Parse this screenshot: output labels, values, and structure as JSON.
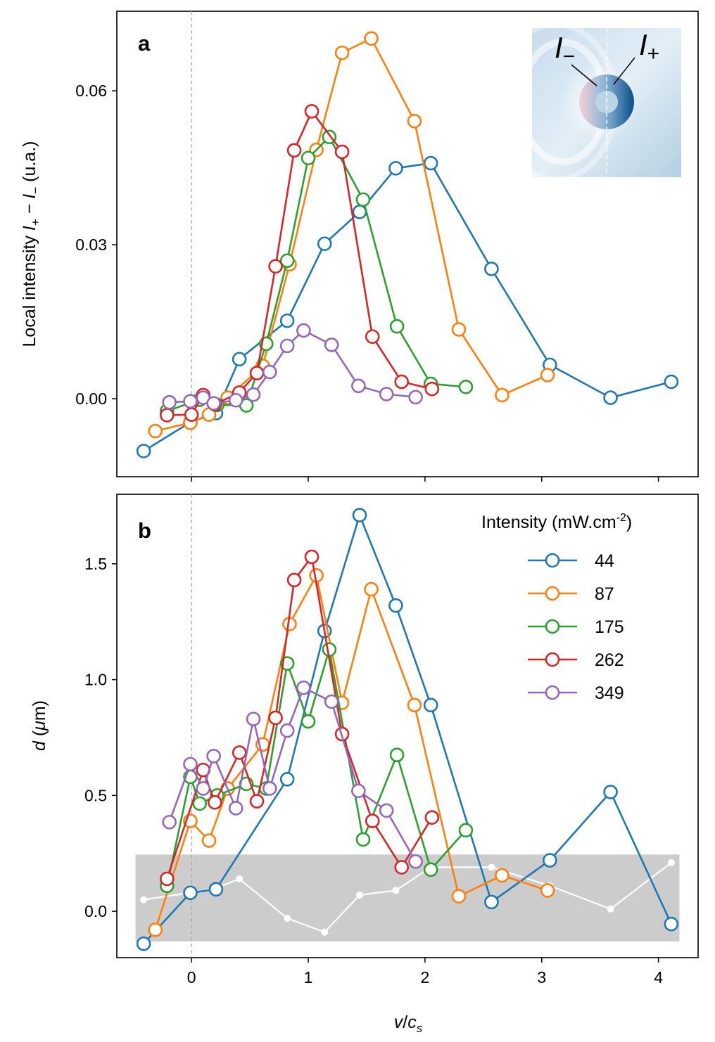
{
  "figure": {
    "shared_xlabel": {
      "main": "v",
      "slash": "/",
      "c": "c",
      "sub": "s"
    },
    "x_ticks": [
      0,
      1,
      2,
      3,
      4
    ],
    "x_tick_labels": [
      "0",
      "1",
      "2",
      "3",
      "4"
    ],
    "colors": {
      "44": "#1f77b4",
      "87": "#ff7f0e",
      "175": "#2ca02c",
      "262": "#d62728",
      "349": "#9467bd"
    }
  },
  "legend": {
    "title": "Intensity (mW.cm",
    "title_sup": "-2",
    "title_close": ")",
    "entries": [
      "44",
      "87",
      "175",
      "262",
      "349"
    ]
  },
  "inset": {
    "minus_label": "I",
    "minus_sub": "−",
    "plus_label": "I",
    "plus_sub": "+"
  },
  "chart_data": [
    {
      "panel": "a",
      "type": "line",
      "ylabel": "Local intensity I₊ − I₋ (u.a.)",
      "ylabel_parts": {
        "pre": "Local intensity ",
        "i1": "I",
        "s1": "+",
        "mid": " − ",
        "i2": "I",
        "s2": "−",
        "post": " (u.a.)"
      },
      "xlim": [
        -0.64,
        4.34
      ],
      "ylim": [
        -0.0152,
        0.0755
      ],
      "yticks": [
        0.0,
        0.03,
        0.06
      ],
      "ytick_labels": [
        "0.00",
        "0.03",
        "0.06"
      ],
      "reference_line_x": 0,
      "series": [
        {
          "name": "44",
          "x": [
            -0.41,
            -0.01,
            0.21,
            0.41,
            0.82,
            1.14,
            1.44,
            1.75,
            2.05,
            2.57,
            3.07,
            3.59,
            4.11
          ],
          "y": [
            -0.0102,
            -0.0046,
            -0.0028,
            0.0077,
            0.0152,
            0.0302,
            0.0364,
            0.0449,
            0.0459,
            0.0253,
            0.0066,
            0.0002,
            0.0033
          ]
        },
        {
          "name": "87",
          "x": [
            -0.31,
            -0.01,
            0.15,
            0.31,
            0.61,
            0.84,
            1.07,
            1.29,
            1.54,
            1.91,
            2.29,
            2.66,
            3.05
          ],
          "y": [
            -0.0063,
            -0.0047,
            -0.0031,
            0.0002,
            0.0064,
            0.0262,
            0.0485,
            0.0674,
            0.0702,
            0.0541,
            0.0135,
            0.0007,
            0.0046
          ]
        },
        {
          "name": "175",
          "x": [
            -0.21,
            0.07,
            0.22,
            0.47,
            0.64,
            0.82,
            1.0,
            1.18,
            1.47,
            1.76,
            2.05,
            2.35
          ],
          "y": [
            -0.0024,
            -0.0002,
            -0.0012,
            -0.0013,
            0.0107,
            0.0269,
            0.0469,
            0.051,
            0.0388,
            0.0141,
            0.0029,
            0.0023
          ]
        },
        {
          "name": "262",
          "x": [
            -0.21,
            0.0,
            0.1,
            0.2,
            0.41,
            0.56,
            0.72,
            0.88,
            1.03,
            1.29,
            1.55,
            1.8,
            2.06
          ],
          "y": [
            -0.0032,
            -0.0031,
            0.0007,
            -0.0011,
            0.0012,
            0.005,
            0.0258,
            0.0484,
            0.056,
            0.0481,
            0.0121,
            0.0033,
            0.0019
          ]
        },
        {
          "name": "349",
          "x": [
            -0.19,
            -0.01,
            0.1,
            0.19,
            0.38,
            0.53,
            0.67,
            0.82,
            0.96,
            1.2,
            1.43,
            1.67,
            1.92
          ],
          "y": [
            -0.0007,
            -0.0005,
            0.0002,
            -0.0009,
            -0.0003,
            0.0008,
            0.0052,
            0.0103,
            0.0133,
            0.0105,
            0.0025,
            0.0009,
            0.0003
          ]
        }
      ]
    },
    {
      "panel": "b",
      "type": "line",
      "ylabel": "d (μm)",
      "ylabel_parts": {
        "pre": "",
        "i1": "d",
        "mid": " (",
        "i2": "μ",
        "post": "m)"
      },
      "xlim": [
        -0.64,
        4.34
      ],
      "ylim": [
        -0.2,
        1.8
      ],
      "yticks": [
        0.0,
        0.5,
        1.0,
        1.5
      ],
      "ytick_labels": [
        "0.0",
        "0.5",
        "1.0",
        "1.5"
      ],
      "reference_line_x": 0,
      "noise_band": {
        "x": [
          -0.48,
          4.18
        ],
        "y": [
          -0.13,
          0.245
        ],
        "color": "#cccccc"
      },
      "noise_series": {
        "x": [
          -0.41,
          -0.01,
          0.21,
          0.41,
          0.82,
          1.14,
          1.44,
          1.75,
          2.05,
          2.57,
          3.07,
          3.59,
          4.11
        ],
        "y": [
          0.05,
          0.08,
          0.1,
          0.14,
          -0.03,
          -0.09,
          0.07,
          0.09,
          0.19,
          0.19,
          0.11,
          0.01,
          0.21
        ]
      },
      "series": [
        {
          "name": "44",
          "x": [
            -0.41,
            -0.01,
            0.21,
            0.82,
            1.14,
            1.44,
            1.75,
            2.05,
            2.57,
            3.07,
            3.59,
            4.11
          ],
          "y": [
            -0.14,
            0.08,
            0.095,
            0.57,
            1.21,
            1.71,
            1.32,
            0.89,
            0.04,
            0.22,
            0.515,
            -0.055
          ]
        },
        {
          "name": "87",
          "x": [
            -0.31,
            -0.01,
            0.15,
            0.31,
            0.61,
            0.84,
            1.07,
            1.29,
            1.54,
            1.91,
            2.29,
            2.66,
            3.05
          ],
          "y": [
            -0.08,
            0.39,
            0.305,
            0.53,
            0.72,
            1.24,
            1.45,
            0.9,
            1.39,
            0.89,
            0.065,
            0.155,
            0.09
          ]
        },
        {
          "name": "175",
          "x": [
            -0.21,
            -0.01,
            0.07,
            0.22,
            0.47,
            0.64,
            0.82,
            1.0,
            1.18,
            1.47,
            1.76,
            2.05,
            2.35
          ],
          "y": [
            0.11,
            0.58,
            0.465,
            0.5,
            0.55,
            0.53,
            1.07,
            0.82,
            1.13,
            0.31,
            0.675,
            0.18,
            0.35
          ]
        },
        {
          "name": "262",
          "x": [
            -0.21,
            0.1,
            0.2,
            0.41,
            0.56,
            0.72,
            0.88,
            1.03,
            1.29,
            1.55,
            1.8,
            2.06
          ],
          "y": [
            0.14,
            0.61,
            0.47,
            0.685,
            0.475,
            0.835,
            1.43,
            1.53,
            0.765,
            0.39,
            0.19,
            0.405
          ]
        },
        {
          "name": "349",
          "x": [
            -0.19,
            -0.01,
            0.1,
            0.19,
            0.38,
            0.53,
            0.67,
            0.82,
            0.96,
            1.2,
            1.43,
            1.67,
            1.92
          ],
          "y": [
            0.385,
            0.635,
            0.53,
            0.67,
            0.445,
            0.83,
            0.53,
            0.78,
            0.965,
            0.905,
            0.52,
            0.435,
            0.215
          ]
        }
      ]
    }
  ]
}
